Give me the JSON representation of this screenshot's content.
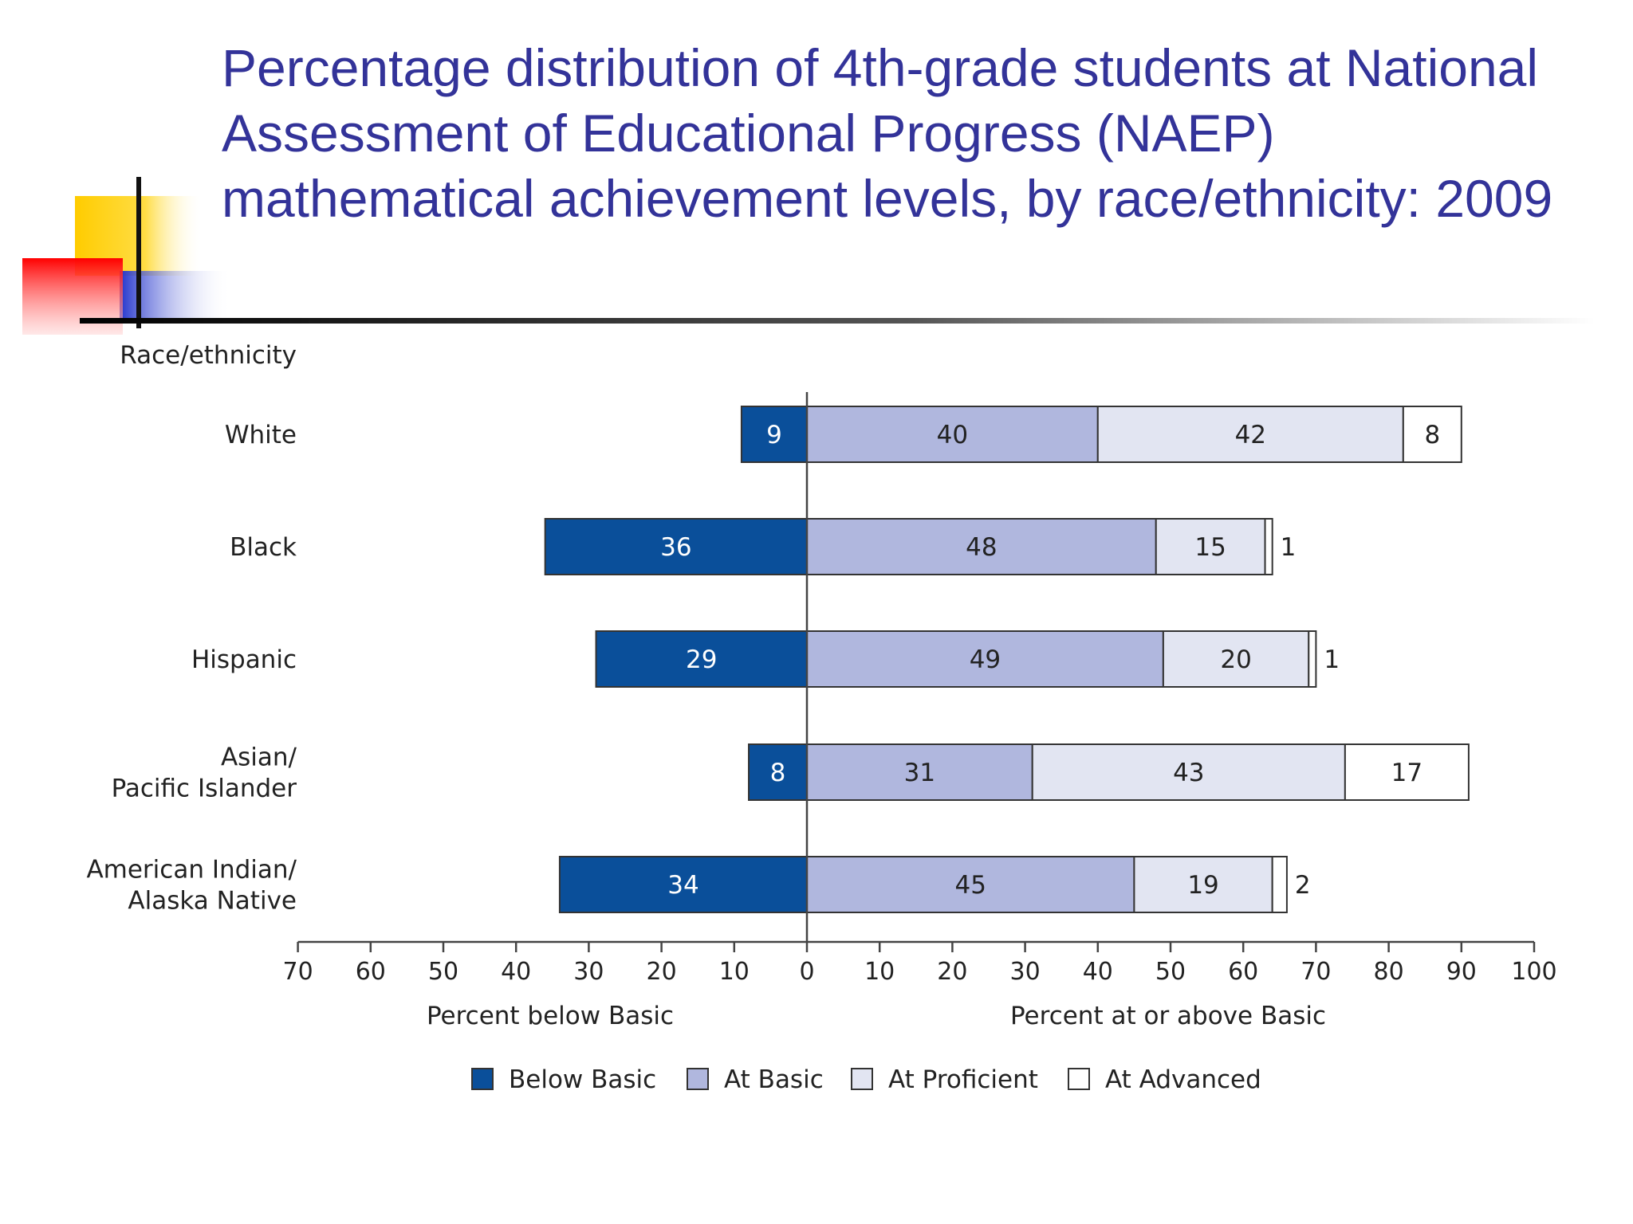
{
  "title": "Percentage distribution of 4th-grade students at National Assessment of Educational Progress (NAEP) mathematical achievement levels, by race/ethnicity: 2009",
  "colors": {
    "title": "#333399",
    "below_basic": "#0a4f9a",
    "at_basic": "#b0b7de",
    "at_proficient": "#e2e5f2",
    "at_advanced": "#ffffff"
  },
  "chart_data": {
    "type": "bar",
    "orientation": "horizontal-stacked-diverging",
    "category_axis_label": "Race/ethnicity",
    "categories": [
      "White",
      "Black",
      "Hispanic",
      "Asian/ Pacific Islander",
      "American Indian/ Alaska Native"
    ],
    "category_lines": [
      [
        "White"
      ],
      [
        "Black"
      ],
      [
        "Hispanic"
      ],
      [
        "Asian/",
        "Pacific Islander"
      ],
      [
        "American Indian/",
        "Alaska Native"
      ]
    ],
    "series": [
      {
        "name": "Below Basic",
        "values": [
          9,
          36,
          29,
          8,
          34
        ],
        "side": "left"
      },
      {
        "name": "At Basic",
        "values": [
          40,
          48,
          49,
          31,
          45
        ],
        "side": "right"
      },
      {
        "name": "At Proficient",
        "values": [
          42,
          15,
          20,
          43,
          19
        ],
        "side": "right"
      },
      {
        "name": "At Advanced",
        "values": [
          8,
          1,
          1,
          17,
          2
        ],
        "side": "right"
      }
    ],
    "xlim": [
      -70,
      100
    ],
    "ticks": [
      -70,
      -60,
      -50,
      -40,
      -30,
      -20,
      -10,
      0,
      10,
      20,
      30,
      40,
      50,
      60,
      70,
      80,
      90,
      100
    ],
    "tick_labels": [
      "70",
      "60",
      "50",
      "40",
      "30",
      "20",
      "10",
      "0",
      "10",
      "20",
      "30",
      "40",
      "50",
      "60",
      "70",
      "80",
      "90",
      "100"
    ],
    "xlabel_left": "Percent below Basic",
    "xlabel_right": "Percent at or above Basic",
    "legend_position": "bottom",
    "grid": false
  }
}
